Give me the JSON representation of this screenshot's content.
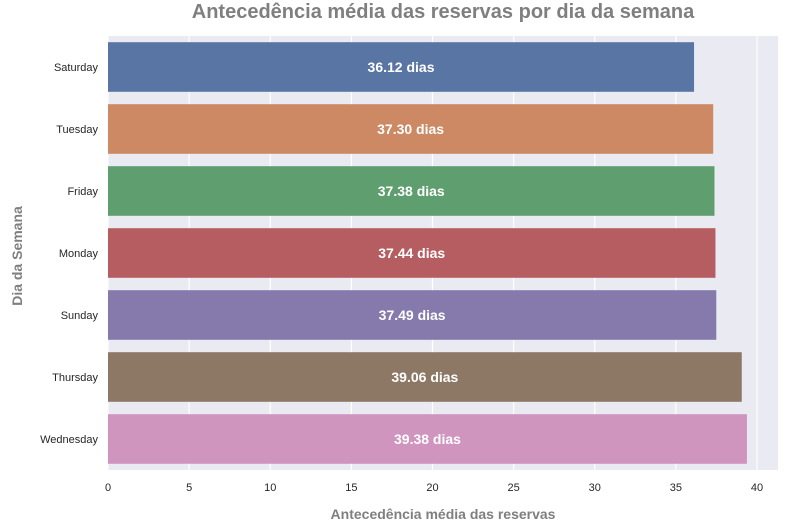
{
  "chart_data": {
    "type": "bar",
    "orientation": "horizontal",
    "title": "Antecedência média das reservas por dia da semana",
    "xlabel": "Antecedência média das reservas",
    "ylabel": "Dia da Semana",
    "xlim": [
      0,
      41
    ],
    "xticks": [
      0,
      5,
      10,
      15,
      20,
      25,
      30,
      35,
      40
    ],
    "grid": true,
    "categories": [
      "Saturday",
      "Tuesday",
      "Friday",
      "Monday",
      "Sunday",
      "Thursday",
      "Wednesday"
    ],
    "values": [
      36.12,
      37.3,
      37.38,
      37.44,
      37.49,
      39.06,
      39.38
    ],
    "data_labels": [
      "36.12 dias",
      "37.30 dias",
      "37.38 dias",
      "37.44 dias",
      "37.49 dias",
      "39.06 dias",
      "39.38 dias"
    ],
    "colors": [
      "#5975a4",
      "#cc8963",
      "#5f9e6e",
      "#b55d60",
      "#857aab",
      "#8d7866",
      "#d095bf"
    ],
    "plot_background": "#eaeaf2"
  }
}
